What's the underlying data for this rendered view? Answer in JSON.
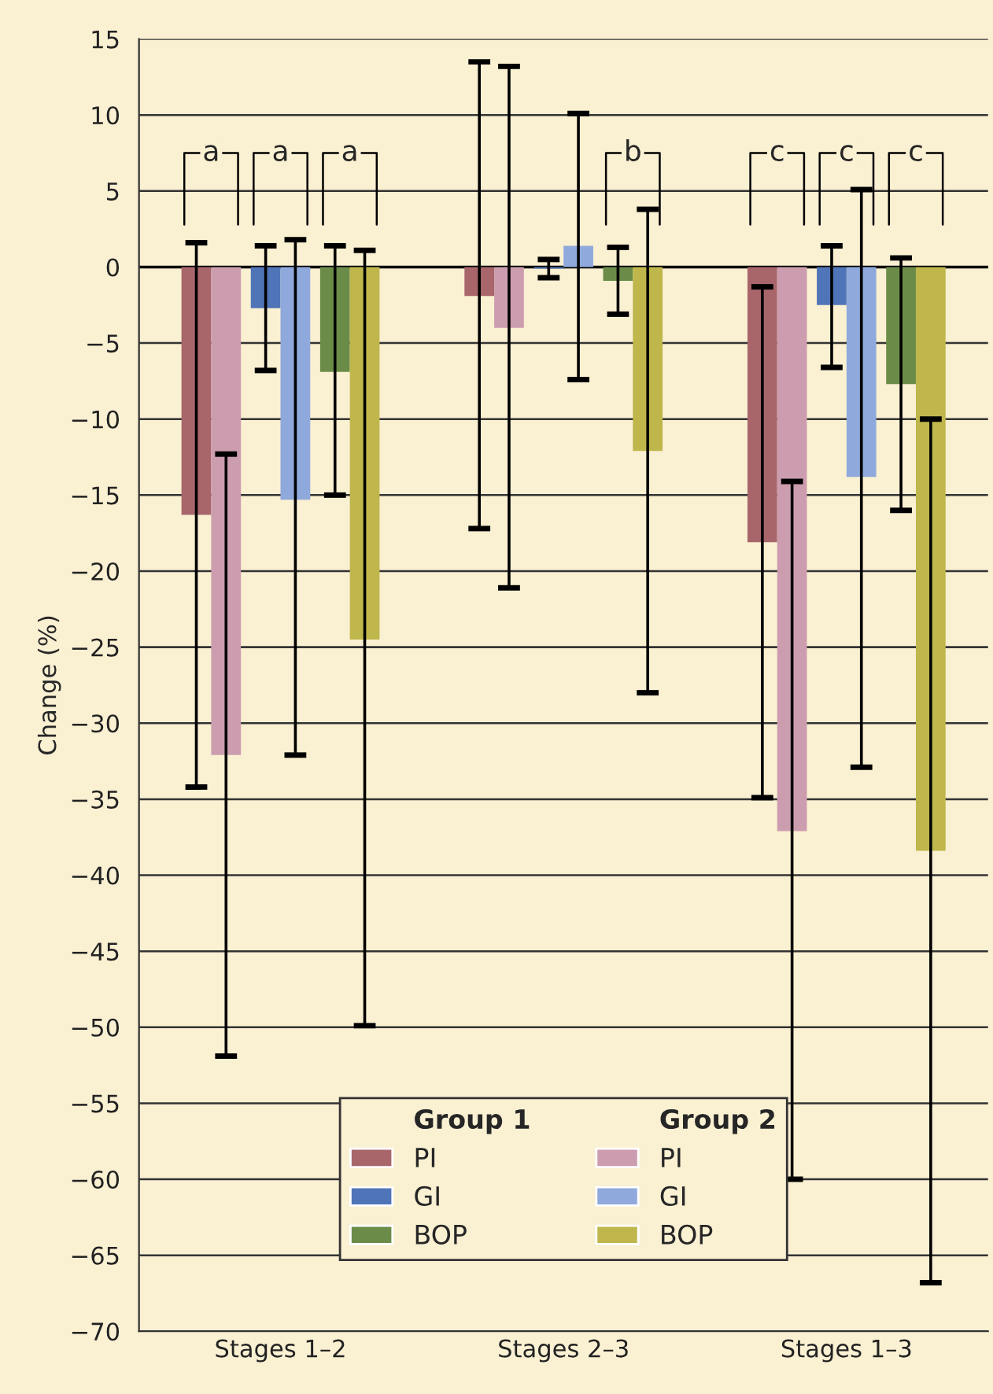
{
  "chart_data": {
    "type": "bar",
    "ylabel": "Change (%)",
    "categories": [
      "Stages 1–2",
      "Stages 2–3",
      "Stages 1–3"
    ],
    "series": [
      {
        "name": "PI",
        "color": "#a8666b",
        "values": [
          -16.3,
          -1.9,
          -18.1
        ],
        "errors": [
          [
            -34.2,
            1.6
          ],
          [
            -17.2,
            13.5
          ],
          [
            -34.9,
            -1.3
          ]
        ]
      },
      {
        "name": "PI",
        "color": "#cc9daf",
        "values": [
          -32.1,
          -4.0,
          -37.1
        ],
        "errors": [
          [
            -51.9,
            -12.3
          ],
          [
            -21.1,
            13.2
          ],
          [
            -60.0,
            -14.1
          ]
        ]
      },
      {
        "name": "GI",
        "color": "#4f74b8",
        "values": [
          -2.7,
          -0.1,
          -2.5
        ],
        "errors": [
          [
            -6.8,
            1.4
          ],
          [
            -0.7,
            0.5
          ],
          [
            -6.6,
            1.4
          ]
        ]
      },
      {
        "name": "GI",
        "color": "#8fa9dc",
        "values": [
          -15.3,
          1.4,
          -13.8
        ],
        "errors": [
          [
            -32.1,
            1.8
          ],
          [
            -7.4,
            10.1
          ],
          [
            -32.9,
            5.1
          ]
        ]
      },
      {
        "name": "BOP",
        "color": "#6b8c48",
        "values": [
          -6.9,
          -0.9,
          -7.7
        ],
        "errors": [
          [
            -15.0,
            1.4
          ],
          [
            -3.1,
            1.3
          ],
          [
            -16.0,
            0.6
          ]
        ]
      },
      {
        "name": "BOP",
        "color": "#bfb74c",
        "values": [
          -24.5,
          -12.1,
          -38.4
        ],
        "errors": [
          [
            -49.9,
            1.1
          ],
          [
            -28.0,
            3.8
          ],
          [
            -66.8,
            -10.0
          ]
        ]
      }
    ],
    "annotations": [
      "a",
      "a",
      "a",
      "b",
      "c",
      "c",
      "c",
      "Group 1",
      "Group 2"
    ],
    "ylim": [
      -70,
      15
    ],
    "yticks": [
      {
        "value": -70,
        "label": "−70"
      },
      {
        "value": -65,
        "label": "−65"
      },
      {
        "value": -60,
        "label": "−60"
      },
      {
        "value": -55,
        "label": "−55"
      },
      {
        "value": -50,
        "label": "−50"
      },
      {
        "value": -45,
        "label": "−45"
      },
      {
        "value": -40,
        "label": "−40"
      },
      {
        "value": -35,
        "label": "−35"
      },
      {
        "value": -30,
        "label": "−30"
      },
      {
        "value": -25,
        "label": "−25"
      },
      {
        "value": -20,
        "label": "−20"
      },
      {
        "value": -15,
        "label": "−15"
      },
      {
        "value": -10,
        "label": "−10"
      },
      {
        "value": -5,
        "label": "−5"
      },
      0,
      5,
      10,
      15
    ],
    "grid": "y",
    "legend": "bottom"
  }
}
